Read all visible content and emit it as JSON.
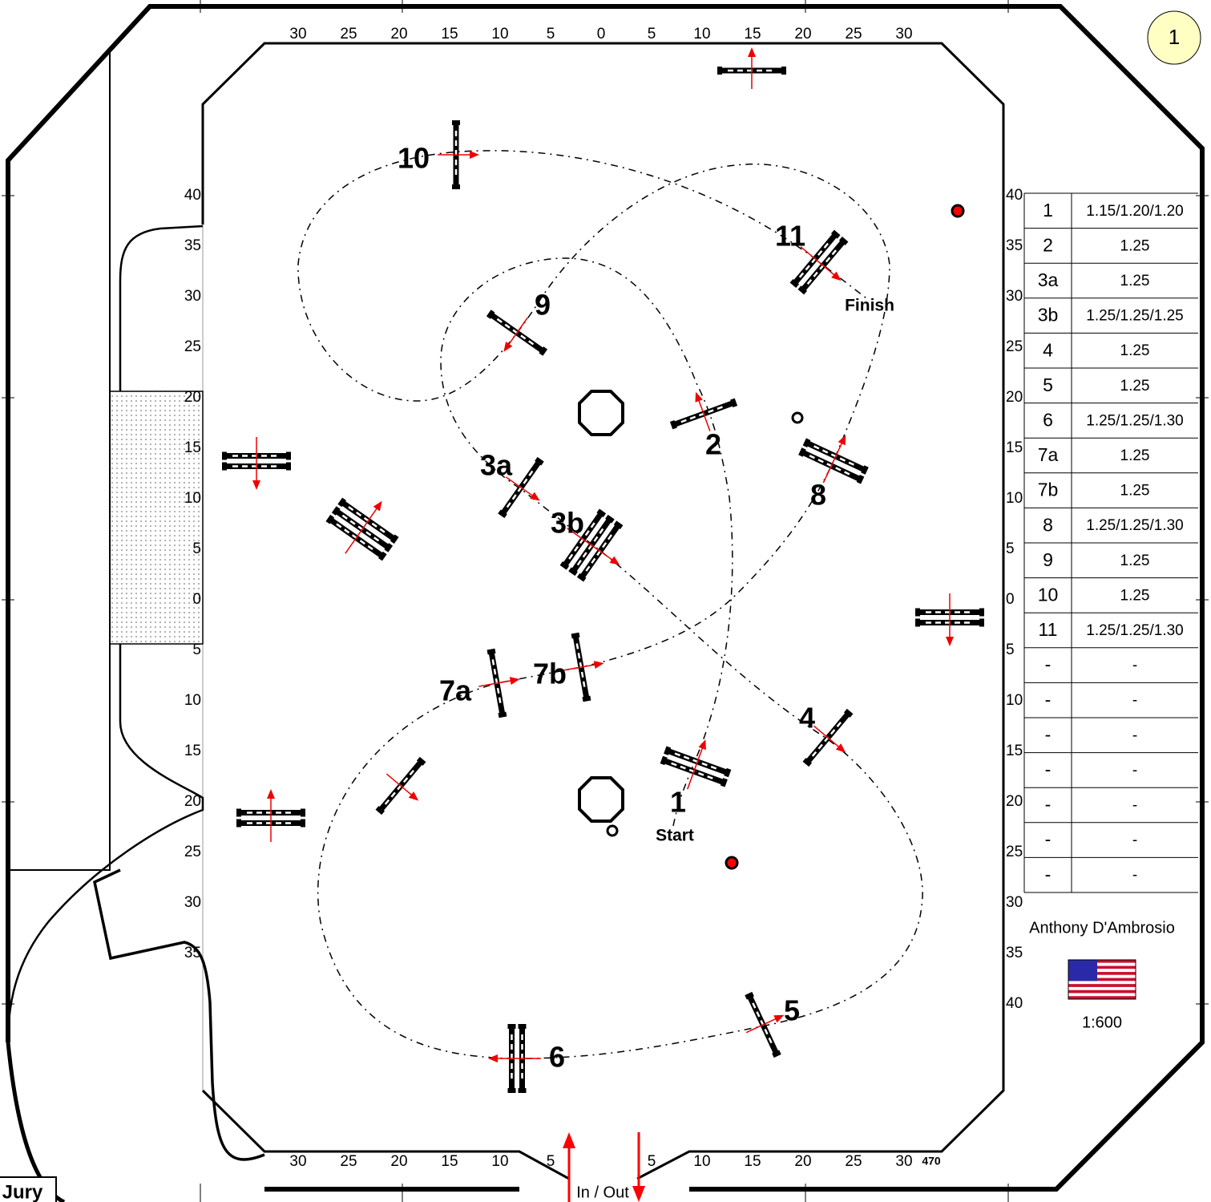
{
  "badge": "1",
  "ruler": {
    "top": [
      30,
      25,
      20,
      15,
      10,
      5,
      0,
      5,
      10,
      15,
      20,
      25,
      30
    ],
    "bottom": [
      30,
      25,
      20,
      15,
      10,
      5,
      5,
      10,
      15,
      20,
      25,
      30
    ],
    "left": [
      40,
      35,
      30,
      25,
      20,
      15,
      10,
      5,
      0,
      5,
      10,
      15,
      20,
      25,
      30,
      35
    ],
    "right": [
      40,
      35,
      30,
      25,
      20,
      15,
      10,
      5,
      0,
      5,
      10,
      15,
      20,
      25,
      30,
      35,
      40
    ]
  },
  "fences": [
    "10",
    "11",
    "9",
    "2",
    "8",
    "3a",
    "3b",
    "7a",
    "7b",
    "4",
    "1",
    "5",
    "6"
  ],
  "start": "Start",
  "finish": "Finish",
  "table": {
    "rows": [
      [
        "1",
        "1.15/1.20/1.20"
      ],
      [
        "2",
        "1.25"
      ],
      [
        "3a",
        "1.25"
      ],
      [
        "3b",
        "1.25/1.25/1.25"
      ],
      [
        "4",
        "1.25"
      ],
      [
        "5",
        "1.25"
      ],
      [
        "6",
        "1.25/1.25/1.30"
      ],
      [
        "7a",
        "1.25"
      ],
      [
        "7b",
        "1.25"
      ],
      [
        "8",
        "1.25/1.25/1.30"
      ],
      [
        "9",
        "1.25"
      ],
      [
        "10",
        "1.25"
      ],
      [
        "11",
        "1.25/1.25/1.30"
      ],
      [
        "-",
        "-"
      ],
      [
        "-",
        "-"
      ],
      [
        "-",
        "-"
      ],
      [
        "-",
        "-"
      ],
      [
        "-",
        "-"
      ],
      [
        "-",
        "-"
      ],
      [
        "-",
        "-"
      ]
    ]
  },
  "designer": "Anthony D'Ambrosio",
  "scale": "1:600",
  "entrance": "In / Out",
  "footnote": "470",
  "jury": "Jury"
}
